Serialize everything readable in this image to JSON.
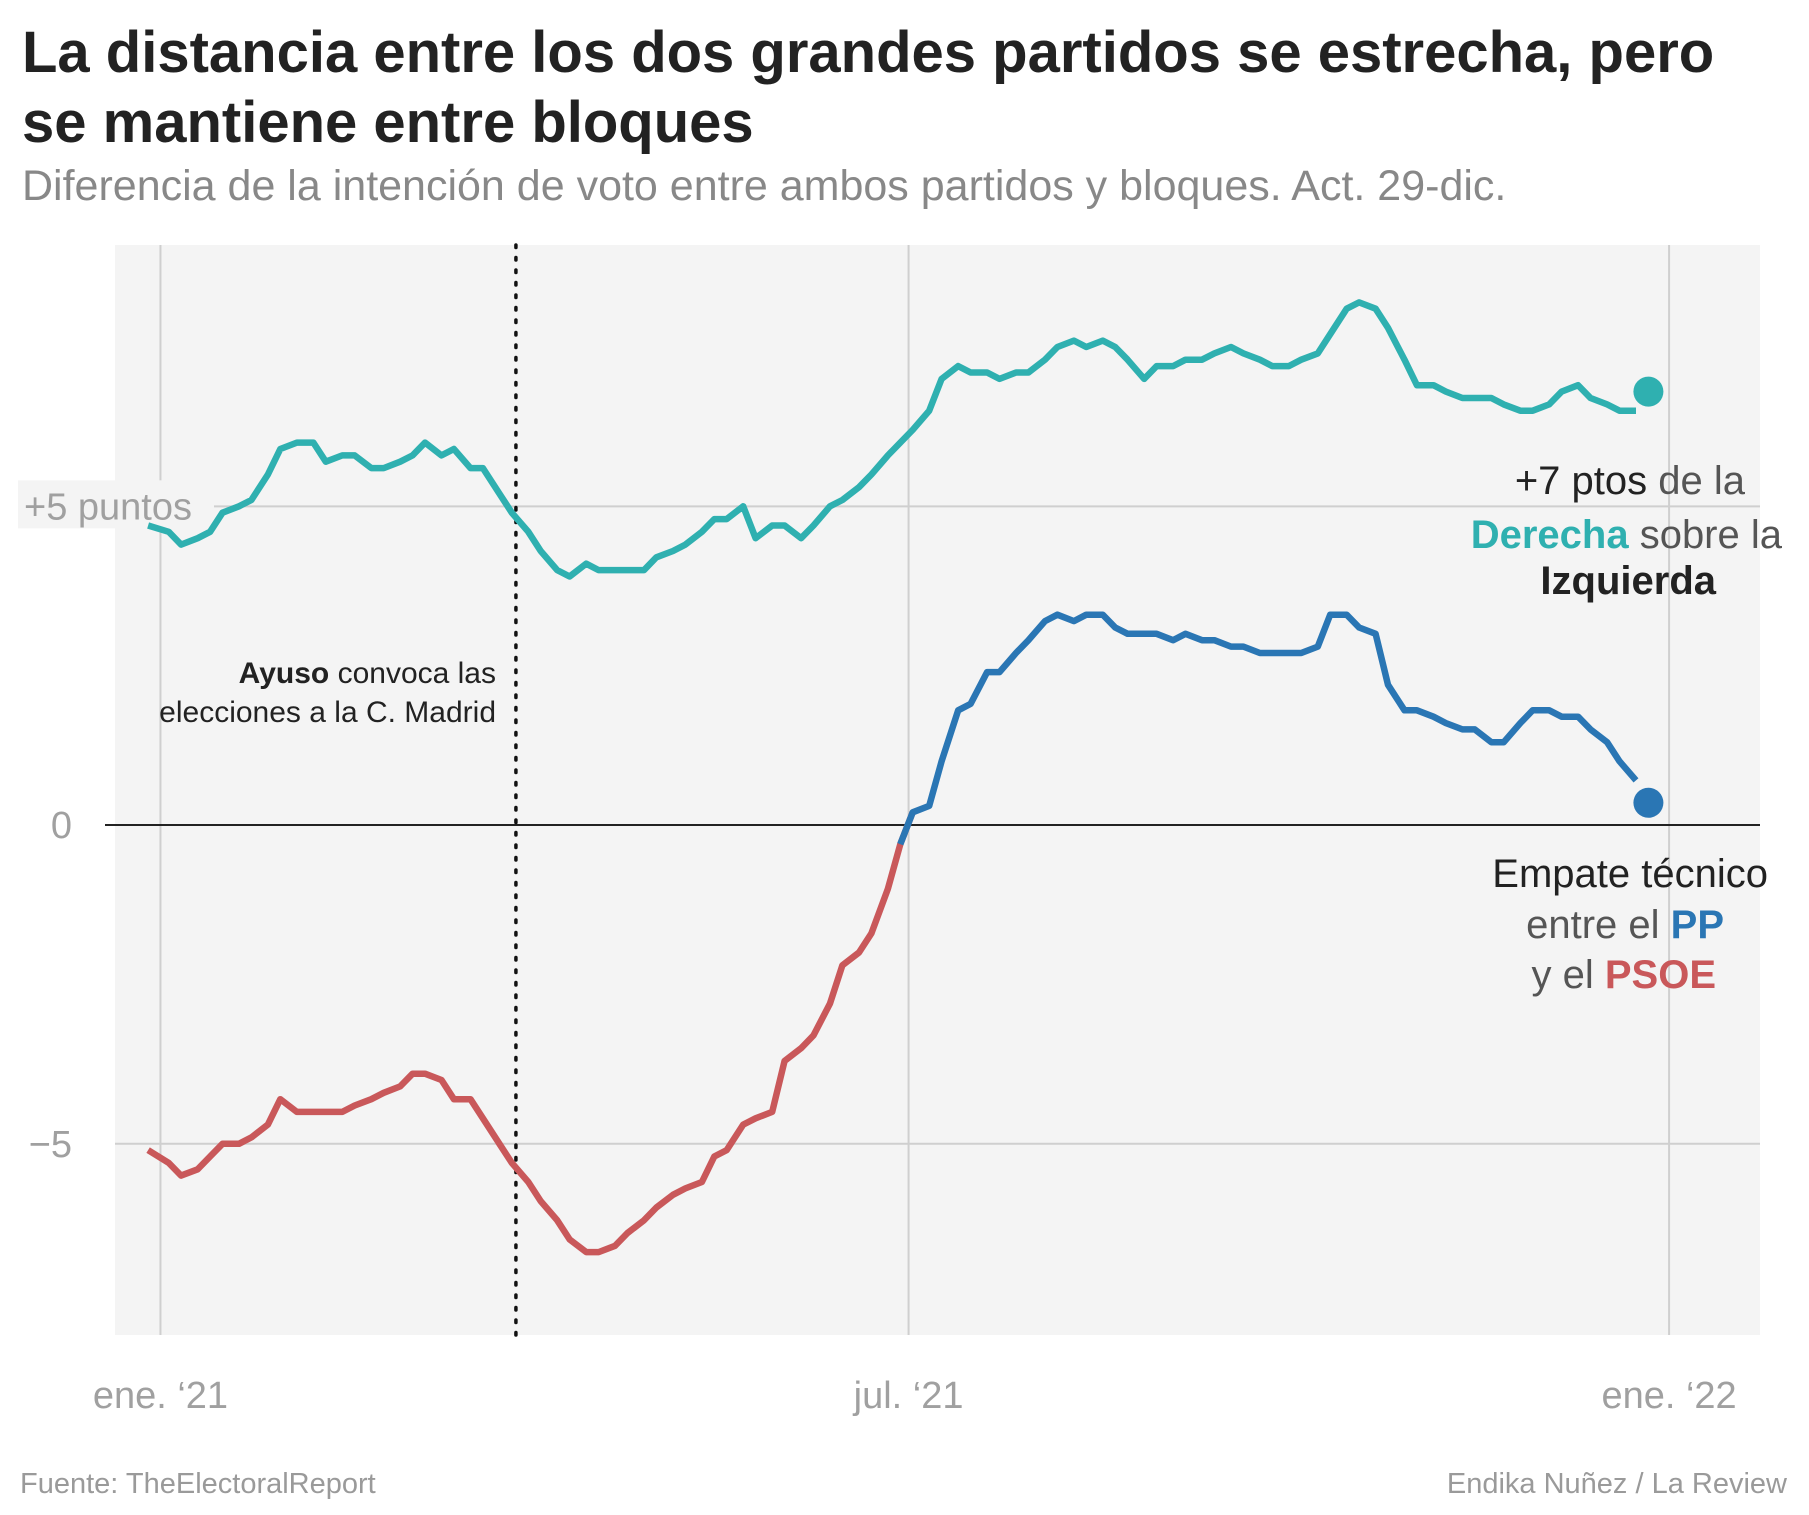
{
  "title": "La distancia entre los dos grandes partidos se estrecha, pero se mantiene entre bloques",
  "subtitle": "Diferencia de la intención de voto entre ambos partidos y bloques. Act. 29-dic.",
  "source": "Fuente: TheElectoralReport",
  "credit": "Endika Nuñez / La Review",
  "colors": {
    "bloques": "#2fb0b0",
    "pp": "#2a76b4",
    "psoe": "#c9585a",
    "derecha_label": "#2fb0b0",
    "izquierda_label": "#e05a3a",
    "plot_bg": "#f4f4f4",
    "grid": "#cfcfcf"
  },
  "annotations": {
    "ayuso_bold": "Ayuso",
    "ayuso_rest": " convoca las",
    "ayuso_line2": "elecciones a la C. Madrid",
    "bloques_line1_a": "+7 ptos",
    "bloques_line1_b": " de la",
    "bloques_line2_a": "Derecha",
    "bloques_line2_b": " sobre la",
    "bloques_line3": "Izquierda",
    "pp_line1": "Empate técnico",
    "pp_line2_a": "entre el ",
    "pp_line2_b": "PP",
    "pp_line3_a": "y el ",
    "pp_line3_b": "PSOE"
  },
  "chart_data": {
    "type": "line",
    "title": "La distancia entre los dos grandes partidos se estrecha, pero se mantiene entre bloques",
    "subtitle": "Diferencia de la intención de voto entre ambos partidos y bloques. Act. 29-dic.",
    "xlabel": "",
    "ylabel": "",
    "x_ticks": [
      {
        "date": "2021-01-01",
        "label": "ene. ‘21"
      },
      {
        "date": "2021-07-01",
        "label": "jul. ‘21"
      },
      {
        "date": "2022-01-01",
        "label": "ene. ‘22"
      }
    ],
    "y_ticks": [
      {
        "value": 5,
        "label": "+5 puntos"
      },
      {
        "value": 0,
        "label": "0"
      },
      {
        "value": -5,
        "label": "−5"
      }
    ],
    "xlim": [
      "2020-12-21",
      "2022-01-23"
    ],
    "ylim": [
      -8.0,
      9.1
    ],
    "reference_events": [
      {
        "date": "2021-03-28",
        "label": "Ayuso convoca las elecciones a la C. Madrid"
      }
    ],
    "end_markers": [
      {
        "series": "bloques",
        "date": "2021-12-27",
        "value": 6.8
      },
      {
        "series": "partidos",
        "date": "2021-12-27",
        "value": 0.35
      }
    ],
    "series": [
      {
        "name": "Derecha sobre la Izquierda",
        "color": "#2fb0b0",
        "points": [
          [
            "2020-12-29",
            4.7
          ],
          [
            "2021-01-03",
            4.6
          ],
          [
            "2021-01-06",
            4.4
          ],
          [
            "2021-01-10",
            4.5
          ],
          [
            "2021-01-13",
            4.6
          ],
          [
            "2021-01-16",
            4.9
          ],
          [
            "2021-01-20",
            5.0
          ],
          [
            "2021-01-23",
            5.1
          ],
          [
            "2021-01-27",
            5.5
          ],
          [
            "2021-01-30",
            5.9
          ],
          [
            "2021-02-03",
            6.0
          ],
          [
            "2021-02-07",
            6.0
          ],
          [
            "2021-02-10",
            5.7
          ],
          [
            "2021-02-14",
            5.8
          ],
          [
            "2021-02-17",
            5.8
          ],
          [
            "2021-02-21",
            5.6
          ],
          [
            "2021-02-24",
            5.6
          ],
          [
            "2021-02-28",
            5.7
          ],
          [
            "2021-03-03",
            5.8
          ],
          [
            "2021-03-06",
            6.0
          ],
          [
            "2021-03-10",
            5.8
          ],
          [
            "2021-03-13",
            5.9
          ],
          [
            "2021-03-17",
            5.6
          ],
          [
            "2021-03-20",
            5.6
          ],
          [
            "2021-03-24",
            5.2
          ],
          [
            "2021-03-27",
            4.9
          ],
          [
            "2021-03-31",
            4.6
          ],
          [
            "2021-04-03",
            4.3
          ],
          [
            "2021-04-07",
            4.0
          ],
          [
            "2021-04-10",
            3.9
          ],
          [
            "2021-04-14",
            4.1
          ],
          [
            "2021-04-17",
            4.0
          ],
          [
            "2021-04-21",
            4.0
          ],
          [
            "2021-04-24",
            4.0
          ],
          [
            "2021-04-28",
            4.0
          ],
          [
            "2021-05-01",
            4.2
          ],
          [
            "2021-05-05",
            4.3
          ],
          [
            "2021-05-08",
            4.4
          ],
          [
            "2021-05-12",
            4.6
          ],
          [
            "2021-05-15",
            4.8
          ],
          [
            "2021-05-18",
            4.8
          ],
          [
            "2021-05-22",
            5.0
          ],
          [
            "2021-05-25",
            4.5
          ],
          [
            "2021-05-29",
            4.7
          ],
          [
            "2021-06-01",
            4.7
          ],
          [
            "2021-06-05",
            4.5
          ],
          [
            "2021-06-08",
            4.7
          ],
          [
            "2021-06-12",
            5.0
          ],
          [
            "2021-06-15",
            5.1
          ],
          [
            "2021-06-19",
            5.3
          ],
          [
            "2021-06-22",
            5.5
          ],
          [
            "2021-06-26",
            5.8
          ],
          [
            "2021-06-29",
            6.0
          ],
          [
            "2021-07-02",
            6.2
          ],
          [
            "2021-07-06",
            6.5
          ],
          [
            "2021-07-09",
            7.0
          ],
          [
            "2021-07-13",
            7.2
          ],
          [
            "2021-07-16",
            7.1
          ],
          [
            "2021-07-20",
            7.1
          ],
          [
            "2021-07-23",
            7.0
          ],
          [
            "2021-07-27",
            7.1
          ],
          [
            "2021-07-30",
            7.1
          ],
          [
            "2021-08-03",
            7.3
          ],
          [
            "2021-08-06",
            7.5
          ],
          [
            "2021-08-10",
            7.6
          ],
          [
            "2021-08-13",
            7.5
          ],
          [
            "2021-08-17",
            7.6
          ],
          [
            "2021-08-20",
            7.5
          ],
          [
            "2021-08-23",
            7.3
          ],
          [
            "2021-08-27",
            7.0
          ],
          [
            "2021-08-30",
            7.2
          ],
          [
            "2021-09-03",
            7.2
          ],
          [
            "2021-09-06",
            7.3
          ],
          [
            "2021-09-10",
            7.3
          ],
          [
            "2021-09-13",
            7.4
          ],
          [
            "2021-09-17",
            7.5
          ],
          [
            "2021-09-20",
            7.4
          ],
          [
            "2021-09-24",
            7.3
          ],
          [
            "2021-09-27",
            7.2
          ],
          [
            "2021-10-01",
            7.2
          ],
          [
            "2021-10-04",
            7.3
          ],
          [
            "2021-10-08",
            7.4
          ],
          [
            "2021-10-11",
            7.7
          ],
          [
            "2021-10-15",
            8.1
          ],
          [
            "2021-10-18",
            8.2
          ],
          [
            "2021-10-22",
            8.1
          ],
          [
            "2021-10-25",
            7.8
          ],
          [
            "2021-10-29",
            7.3
          ],
          [
            "2021-11-01",
            6.9
          ],
          [
            "2021-11-05",
            6.9
          ],
          [
            "2021-11-08",
            6.8
          ],
          [
            "2021-11-12",
            6.7
          ],
          [
            "2021-11-15",
            6.7
          ],
          [
            "2021-11-19",
            6.7
          ],
          [
            "2021-11-22",
            6.6
          ],
          [
            "2021-11-26",
            6.5
          ],
          [
            "2021-11-29",
            6.5
          ],
          [
            "2021-12-03",
            6.6
          ],
          [
            "2021-12-06",
            6.8
          ],
          [
            "2021-12-10",
            6.9
          ],
          [
            "2021-12-13",
            6.7
          ],
          [
            "2021-12-17",
            6.6
          ],
          [
            "2021-12-20",
            6.5
          ],
          [
            "2021-12-24",
            6.5
          ]
        ]
      },
      {
        "name": "PP sobre el PSOE",
        "color": "#2a76b4",
        "negative_color": "#c9585a",
        "points": [
          [
            "2020-12-29",
            -5.1
          ],
          [
            "2021-01-03",
            -5.3
          ],
          [
            "2021-01-06",
            -5.5
          ],
          [
            "2021-01-10",
            -5.4
          ],
          [
            "2021-01-13",
            -5.2
          ],
          [
            "2021-01-16",
            -5.0
          ],
          [
            "2021-01-20",
            -5.0
          ],
          [
            "2021-01-23",
            -4.9
          ],
          [
            "2021-01-27",
            -4.7
          ],
          [
            "2021-01-30",
            -4.3
          ],
          [
            "2021-02-03",
            -4.5
          ],
          [
            "2021-02-07",
            -4.5
          ],
          [
            "2021-02-10",
            -4.5
          ],
          [
            "2021-02-14",
            -4.5
          ],
          [
            "2021-02-17",
            -4.4
          ],
          [
            "2021-02-21",
            -4.3
          ],
          [
            "2021-02-24",
            -4.2
          ],
          [
            "2021-02-28",
            -4.1
          ],
          [
            "2021-03-03",
            -3.9
          ],
          [
            "2021-03-06",
            -3.9
          ],
          [
            "2021-03-10",
            -4.0
          ],
          [
            "2021-03-13",
            -4.3
          ],
          [
            "2021-03-17",
            -4.3
          ],
          [
            "2021-03-20",
            -4.6
          ],
          [
            "2021-03-24",
            -5.0
          ],
          [
            "2021-03-27",
            -5.3
          ],
          [
            "2021-03-31",
            -5.6
          ],
          [
            "2021-04-03",
            -5.9
          ],
          [
            "2021-04-07",
            -6.2
          ],
          [
            "2021-04-10",
            -6.5
          ],
          [
            "2021-04-14",
            -6.7
          ],
          [
            "2021-04-17",
            -6.7
          ],
          [
            "2021-04-21",
            -6.6
          ],
          [
            "2021-04-24",
            -6.4
          ],
          [
            "2021-04-28",
            -6.2
          ],
          [
            "2021-05-01",
            -6.0
          ],
          [
            "2021-05-05",
            -5.8
          ],
          [
            "2021-05-08",
            -5.7
          ],
          [
            "2021-05-12",
            -5.6
          ],
          [
            "2021-05-15",
            -5.2
          ],
          [
            "2021-05-18",
            -5.1
          ],
          [
            "2021-05-22",
            -4.7
          ],
          [
            "2021-05-25",
            -4.6
          ],
          [
            "2021-05-29",
            -4.5
          ],
          [
            "2021-06-01",
            -3.7
          ],
          [
            "2021-06-05",
            -3.5
          ],
          [
            "2021-06-08",
            -3.3
          ],
          [
            "2021-06-12",
            -2.8
          ],
          [
            "2021-06-15",
            -2.2
          ],
          [
            "2021-06-19",
            -2.0
          ],
          [
            "2021-06-22",
            -1.7
          ],
          [
            "2021-06-26",
            -1.0
          ],
          [
            "2021-06-29",
            -0.3
          ],
          [
            "2021-07-02",
            0.2
          ],
          [
            "2021-07-06",
            0.3
          ],
          [
            "2021-07-09",
            1.0
          ],
          [
            "2021-07-13",
            1.8
          ],
          [
            "2021-07-16",
            1.9
          ],
          [
            "2021-07-20",
            2.4
          ],
          [
            "2021-07-23",
            2.4
          ],
          [
            "2021-07-27",
            2.7
          ],
          [
            "2021-07-30",
            2.9
          ],
          [
            "2021-08-03",
            3.2
          ],
          [
            "2021-08-06",
            3.3
          ],
          [
            "2021-08-10",
            3.2
          ],
          [
            "2021-08-13",
            3.3
          ],
          [
            "2021-08-17",
            3.3
          ],
          [
            "2021-08-20",
            3.1
          ],
          [
            "2021-08-23",
            3.0
          ],
          [
            "2021-08-27",
            3.0
          ],
          [
            "2021-08-30",
            3.0
          ],
          [
            "2021-09-03",
            2.9
          ],
          [
            "2021-09-06",
            3.0
          ],
          [
            "2021-09-10",
            2.9
          ],
          [
            "2021-09-13",
            2.9
          ],
          [
            "2021-09-17",
            2.8
          ],
          [
            "2021-09-20",
            2.8
          ],
          [
            "2021-09-24",
            2.7
          ],
          [
            "2021-09-27",
            2.7
          ],
          [
            "2021-10-01",
            2.7
          ],
          [
            "2021-10-04",
            2.7
          ],
          [
            "2021-10-08",
            2.8
          ],
          [
            "2021-10-11",
            3.3
          ],
          [
            "2021-10-15",
            3.3
          ],
          [
            "2021-10-18",
            3.1
          ],
          [
            "2021-10-22",
            3.0
          ],
          [
            "2021-10-25",
            2.2
          ],
          [
            "2021-10-29",
            1.8
          ],
          [
            "2021-11-01",
            1.8
          ],
          [
            "2021-11-05",
            1.7
          ],
          [
            "2021-11-08",
            1.6
          ],
          [
            "2021-11-12",
            1.5
          ],
          [
            "2021-11-15",
            1.5
          ],
          [
            "2021-11-19",
            1.3
          ],
          [
            "2021-11-22",
            1.3
          ],
          [
            "2021-11-26",
            1.6
          ],
          [
            "2021-11-29",
            1.8
          ],
          [
            "2021-12-03",
            1.8
          ],
          [
            "2021-12-06",
            1.7
          ],
          [
            "2021-12-10",
            1.7
          ],
          [
            "2021-12-13",
            1.5
          ],
          [
            "2021-12-17",
            1.3
          ],
          [
            "2021-12-20",
            1.0
          ],
          [
            "2021-12-24",
            0.7
          ]
        ]
      }
    ]
  }
}
